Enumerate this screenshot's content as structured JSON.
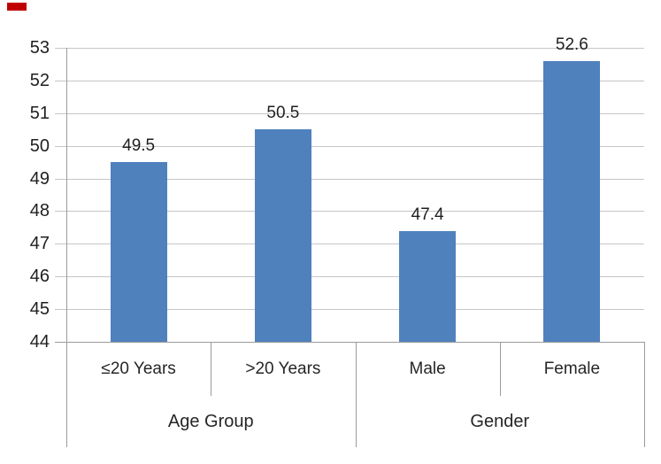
{
  "chart_data": {
    "type": "bar",
    "title": "",
    "xlabel": "",
    "ylabel": "",
    "legend": "none",
    "grid": true,
    "categories": [
      "≤20 Years",
      ">20 Years",
      "Male",
      "Female"
    ],
    "values": [
      49.5,
      50.5,
      47.4,
      52.6
    ],
    "value_labels": [
      "49.5",
      "50.5",
      "47.4",
      "52.6"
    ],
    "group_labels": [
      {
        "label": "Age Group",
        "span": 2
      },
      {
        "label": "Gender",
        "span": 2
      }
    ],
    "yticks": [
      53,
      52,
      51,
      50,
      49,
      48,
      47,
      46,
      45,
      44
    ],
    "ylim": [
      44,
      53
    ],
    "bar_color": "#4F81BD",
    "gridline_color": "#C6C6C6",
    "axis_line_color": "#9B9B9B",
    "text_color": "#1F1F1F"
  },
  "decor": {
    "red_corner_mark_color": "#C00000"
  }
}
